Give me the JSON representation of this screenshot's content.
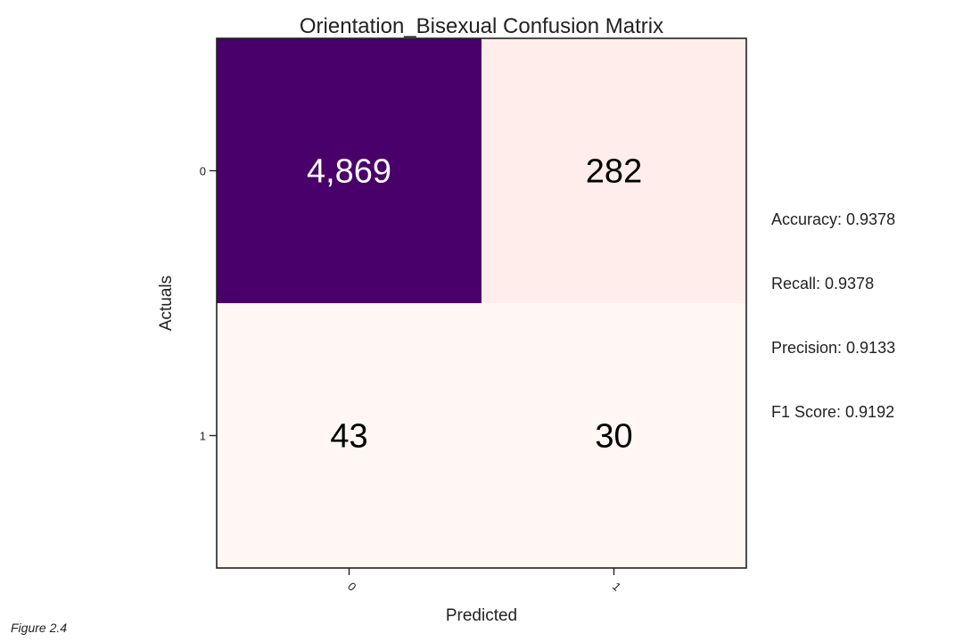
{
  "chart_data": {
    "type": "heatmap",
    "title": "Orientation_Bisexual Confusion Matrix",
    "xlabel": "Predicted",
    "ylabel": "Actuals",
    "x_ticks": [
      "0",
      "1"
    ],
    "y_ticks": [
      "0",
      "1"
    ],
    "matrix": [
      [
        4869,
        282
      ],
      [
        43,
        30
      ]
    ],
    "cell_labels": [
      [
        "4,869",
        "282"
      ],
      [
        "43",
        "30"
      ]
    ],
    "colormap": "RdPu",
    "colors": {
      "high": "#49006a",
      "low": "#fff7f3",
      "text_dark_cell": "#ffffff",
      "text_light_cell": "#000000"
    }
  },
  "metrics": [
    "Accuracy: 0.9378",
    "Recall: 0.9378",
    "Precision: 0.9133",
    "F1 Score: 0.9192"
  ],
  "figure_caption": "Figure 2.4"
}
